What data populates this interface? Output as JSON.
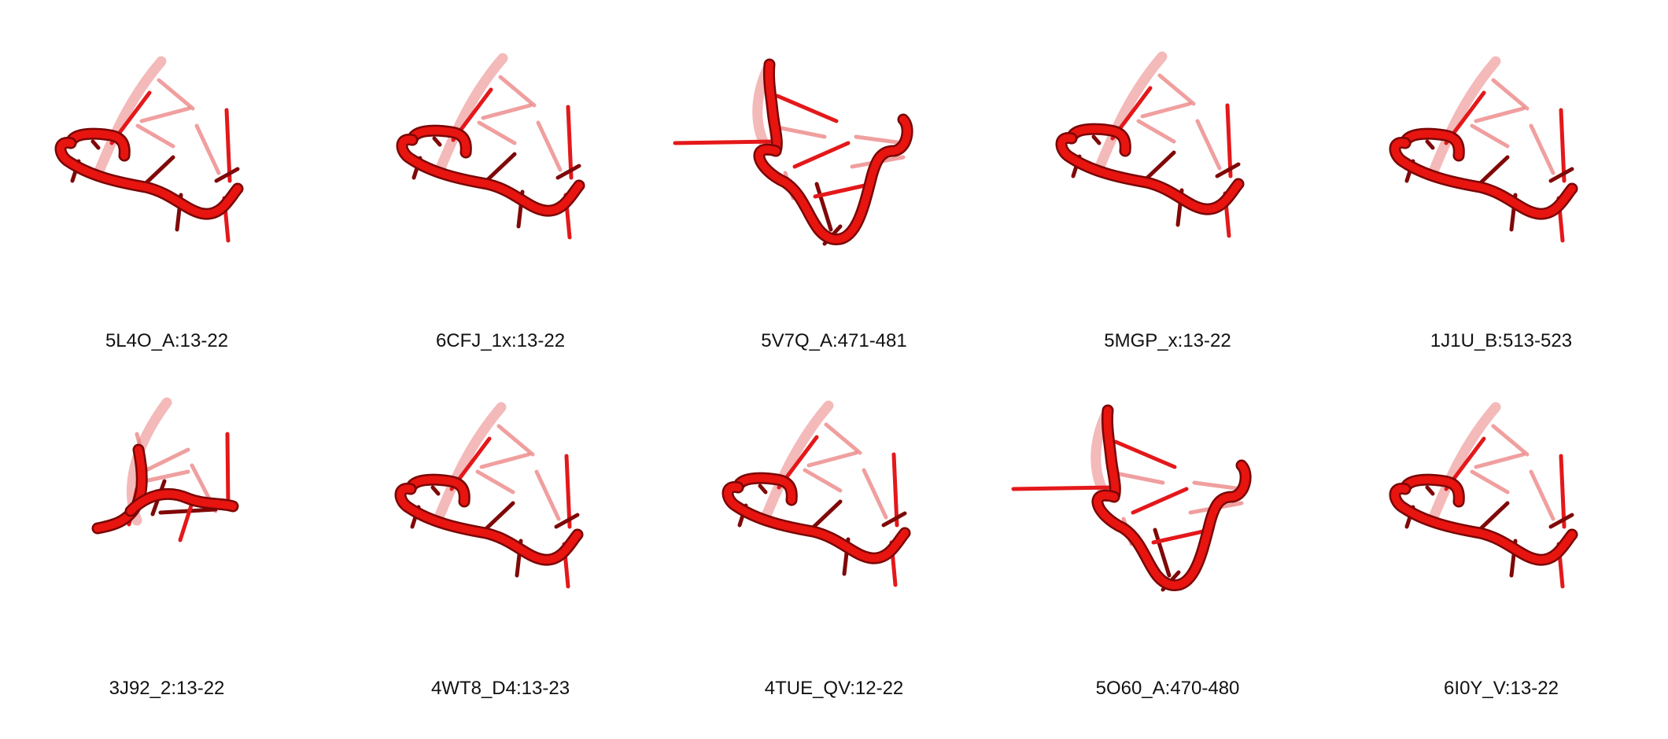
{
  "colors": {
    "backbone": "#e8140f",
    "backbone_dark": "#7a0606",
    "stick": "#e4181a",
    "stick_dark": "#800808",
    "stick_faded": "#eb7f7f",
    "background": "#ffffff"
  },
  "panels": [
    {
      "id": "5L4O_A",
      "label": "5L4O_A:13-22",
      "shape": "loop"
    },
    {
      "id": "6CFJ_1x",
      "label": "6CFJ_1x:13-22",
      "shape": "loop"
    },
    {
      "id": "5V7Q_A",
      "label": "5V7Q_A:471-481",
      "shape": "twist"
    },
    {
      "id": "5MGP_x",
      "label": "5MGP_x:13-22",
      "shape": "loop"
    },
    {
      "id": "1J1U_B",
      "label": "1J1U_B:513-523",
      "shape": "loop"
    },
    {
      "id": "3J92_2",
      "label": "3J92_2:13-22",
      "shape": "open"
    },
    {
      "id": "4WT8_D4",
      "label": "4WT8_D4:13-23",
      "shape": "loop"
    },
    {
      "id": "4TUE_QV",
      "label": "4TUE_QV:12-22",
      "shape": "loop"
    },
    {
      "id": "5O60_A",
      "label": "5O60_A:470-480",
      "shape": "twist"
    },
    {
      "id": "6I0Y_V",
      "label": "6I0Y_V:13-22",
      "shape": "loop"
    }
  ]
}
